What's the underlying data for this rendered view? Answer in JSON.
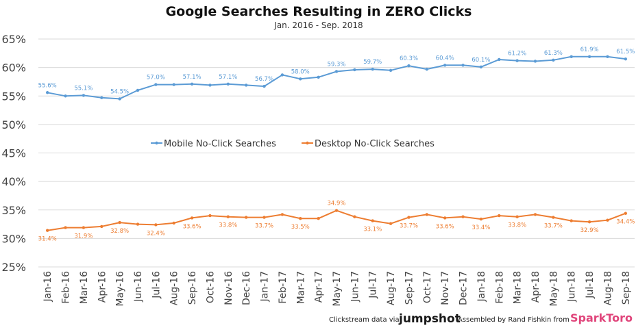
{
  "chart_data": {
    "type": "line",
    "title": "Google Searches Resulting in ZERO Clicks",
    "subtitle": "Jan. 2016 - Sep. 2018",
    "xlabel": "",
    "ylabel": "",
    "ylim": [
      25,
      65
    ],
    "y_ticks": [
      "25%",
      "30%",
      "35%",
      "40%",
      "45%",
      "50%",
      "55%",
      "60%",
      "65%"
    ],
    "grid": true,
    "legend_position": "center",
    "categories": [
      "Jan-16",
      "Feb-16",
      "Mar-16",
      "Apr-16",
      "May-16",
      "Jun-16",
      "Jul-16",
      "Aug-16",
      "Sep-16",
      "Oct-16",
      "Nov-16",
      "Dec-16",
      "Jan-17",
      "Feb-17",
      "Mar-17",
      "Apr-17",
      "May-17",
      "Jun-17",
      "Jul-17",
      "Aug-17",
      "Sep-17",
      "Oct-17",
      "Nov-17",
      "Dec-17",
      "Jan-18",
      "Feb-18",
      "Mar-18",
      "Apr-18",
      "May-18",
      "Jun-18",
      "Jul-18",
      "Aug-18",
      "Sep-18"
    ],
    "series": [
      {
        "name": "Mobile No-Click Searches",
        "color": "#5b9bd5",
        "values": [
          55.6,
          55.0,
          55.1,
          54.7,
          54.5,
          56.0,
          57.0,
          57.0,
          57.1,
          56.9,
          57.1,
          56.9,
          56.7,
          58.7,
          58.0,
          58.3,
          59.3,
          59.6,
          59.7,
          59.5,
          60.3,
          59.7,
          60.4,
          60.4,
          60.1,
          61.4,
          61.2,
          61.1,
          61.3,
          61.9,
          61.9,
          61.9,
          61.5
        ],
        "labels": [
          "55.6%",
          null,
          "55.1%",
          null,
          "54.5%",
          null,
          "57.0%",
          null,
          "57.1%",
          null,
          "57.1%",
          null,
          "56.7%",
          null,
          "58.0%",
          null,
          "59.3%",
          null,
          "59.7%",
          null,
          "60.3%",
          null,
          "60.4%",
          null,
          "60.1%",
          null,
          "61.2%",
          null,
          "61.3%",
          null,
          "61.9%",
          null,
          "61.5%"
        ]
      },
      {
        "name": "Desktop No-Click Searches",
        "color": "#ed7d31",
        "values": [
          31.4,
          31.9,
          31.9,
          32.1,
          32.8,
          32.5,
          32.4,
          32.7,
          33.6,
          34.0,
          33.8,
          33.7,
          33.7,
          34.2,
          33.5,
          33.5,
          34.9,
          33.8,
          33.1,
          32.6,
          33.7,
          34.2,
          33.6,
          33.8,
          33.4,
          34.0,
          33.8,
          34.2,
          33.7,
          33.1,
          32.9,
          33.2,
          34.4
        ],
        "labels": [
          "31.4%",
          null,
          "31.9%",
          null,
          "32.8%",
          null,
          "32.4%",
          null,
          "33.6%",
          null,
          "33.8%",
          null,
          "33.7%",
          null,
          "33.5%",
          null,
          "34.9%",
          null,
          "33.1%",
          null,
          "33.7%",
          null,
          "33.6%",
          null,
          "33.4%",
          null,
          "33.8%",
          null,
          "33.7%",
          null,
          "32.9%",
          null,
          "34.4%"
        ]
      }
    ]
  },
  "footer": {
    "credit_prefix": "Clickstream data via",
    "jumpshot_logo": "jumpshot",
    "credit_assembled": "Assembled by Rand Fishkin from",
    "sparktoro_logo": "SparkToro"
  }
}
